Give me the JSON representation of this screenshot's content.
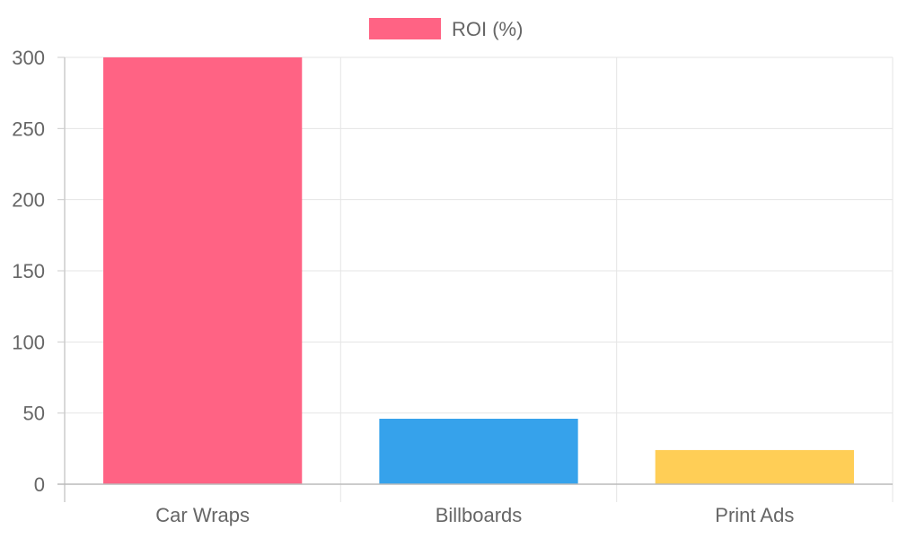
{
  "chart_data": {
    "type": "bar",
    "categories": [
      "Car Wraps",
      "Billboards",
      "Print Ads"
    ],
    "series": [
      {
        "name": "ROI (%)",
        "values": [
          300,
          46,
          24
        ]
      }
    ],
    "colors": [
      "#ff6384",
      "#36a2eb",
      "#ffce56"
    ],
    "legend": {
      "position": "top",
      "label": "ROI (%)",
      "color": "#ff6384"
    },
    "ylim": [
      0,
      300
    ],
    "y_ticks": [
      "0",
      "50",
      "100",
      "150",
      "200",
      "250",
      "300"
    ],
    "y_tick_values": [
      0,
      50,
      100,
      150,
      200,
      250,
      300
    ],
    "grid": true,
    "title": "",
    "xlabel": "",
    "ylabel": ""
  }
}
